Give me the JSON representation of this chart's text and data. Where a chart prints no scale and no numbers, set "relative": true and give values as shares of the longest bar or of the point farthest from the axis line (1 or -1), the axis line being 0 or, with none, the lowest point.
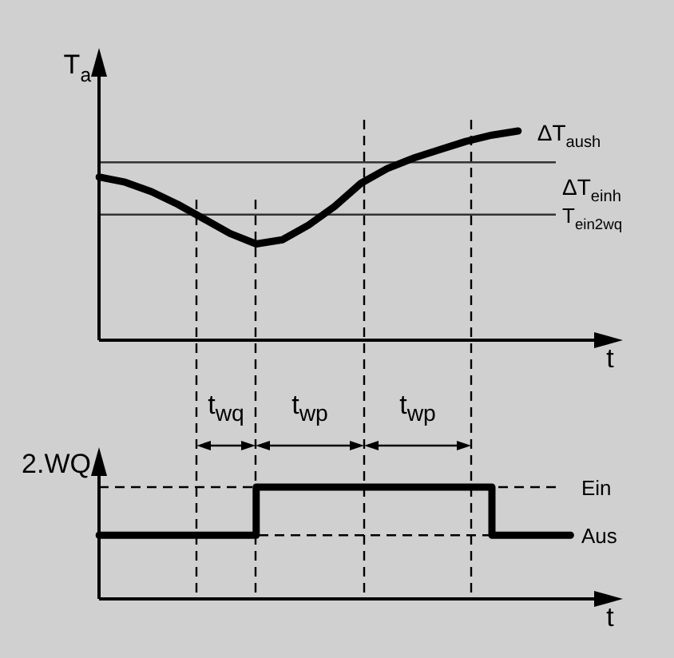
{
  "chart_data": [
    {
      "type": "line",
      "ylabel": "T$_{a}$",
      "xlabel": "t",
      "relative": true,
      "categories": [
        null,
        null,
        null,
        null,
        null,
        null,
        null,
        null,
        null,
        null,
        null,
        null,
        null,
        null,
        null,
        null,
        null,
        null,
        null,
        null,
        null
      ],
      "marker": "none",
      "line_style": "solid",
      "series": [
        {
          "color": "#000000",
          "values": [
            0.78,
            0.755,
            0.71,
            0.65,
            0.58,
            0.51,
            0.46,
            0.48,
            0.55,
            0.64,
            0.75,
            0.82,
            0.87,
            0.91,
            0.95,
            0.98,
            1,
            null,
            null,
            null,
            null
          ]
        }
      ],
      "ref_lines": [
        {
          "axis": "y",
          "value": 0.85,
          "color": "#333333",
          "line_style": "solid"
        },
        {
          "axis": "y",
          "value": 0.6,
          "label": "T$_{ein2wq}$",
          "color": "#333333",
          "line_style": "solid"
        }
      ],
      "annotations": [
        "ΔT$_{aush}$",
        "ΔT$_{einh}$"
      ]
    },
    {
      "type": "step",
      "ylabel": "2.WQ",
      "xlabel": "t",
      "relative": true,
      "categories": [
        null,
        null,
        null,
        null,
        null,
        null,
        null,
        null,
        null,
        null,
        null,
        null,
        null,
        null,
        null,
        null,
        null,
        null,
        null,
        null,
        null
      ],
      "marker": "none",
      "line_style": "solid",
      "series": [
        {
          "color": "#000000",
          "values": [
            0.57,
            0.57,
            0.57,
            0.57,
            0.57,
            0.57,
            1,
            1,
            1,
            1,
            1,
            1,
            1,
            1,
            1,
            0.57,
            0.57,
            0.57,
            0.57,
            null,
            null
          ]
        }
      ],
      "ref_lines": [
        {
          "axis": "y",
          "value": 1,
          "label": "Ein",
          "line_style": "dashed"
        },
        {
          "axis": "y",
          "value": 0.57,
          "label": "Aus",
          "line_style": "dashed"
        }
      ],
      "annotations": [
        "t$_{wq}$",
        "t$_{wp}$",
        "t$_{wp}$"
      ]
    }
  ]
}
